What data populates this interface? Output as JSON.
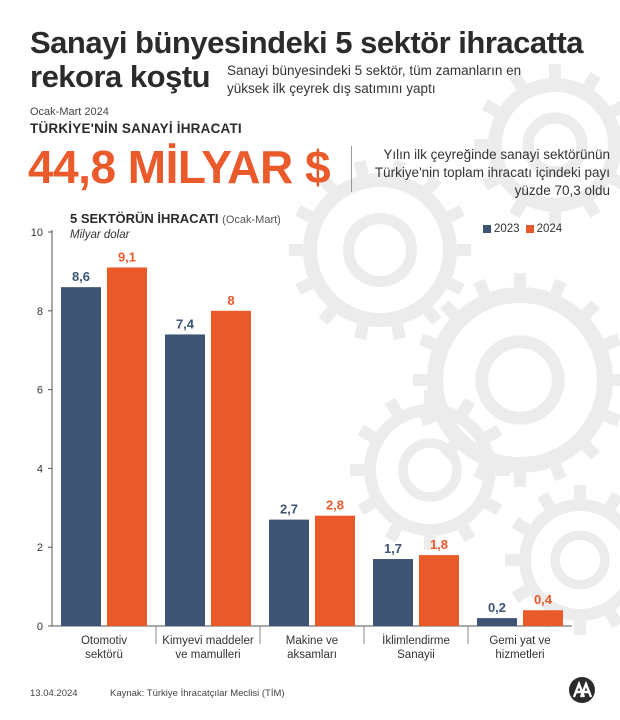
{
  "headline": "Sanayi bünyesindeki 5 sektör ihracatta rekora koştu",
  "headline_sub": "Sanayi bünyesindeki 5 sektör, tüm zamanların en yüksek ilk çeyrek dış satımını yaptı",
  "period": "Ocak-Mart 2024",
  "kicker": "TÜRKİYE'NİN SANAYİ İHRACATI",
  "big_number": "44,8 MİLYAR $",
  "side_note": "Yılın ilk çeyreğinde sanayi sektörünün Türkiye'nin toplam ihracatı içindeki payı yüzde 70,3 oldu",
  "chart_title": "5 SEKTÖRÜN İHRACATI",
  "chart_title_paren": "(Ocak-Mart)",
  "chart_unit": "Milyar dolar",
  "footer": {
    "date": "13.04.2024",
    "source": "Kaynak: Türkiye İhracatçılar Meclisi (TİM)"
  },
  "colors": {
    "series_2023": "#3d5475",
    "series_2024": "#ea5a2b",
    "accent": "#ea5a2b",
    "gear": "#ececec"
  },
  "chart_data": {
    "type": "bar",
    "categories": [
      "Otomotiv sektörü",
      "Kimyevi maddeler ve mamulleri",
      "Makine ve aksamları",
      "İklimlendirme Sanayii",
      "Gemi yat ve hizmetleri"
    ],
    "category_lines": [
      [
        "Otomotiv",
        "sektörü"
      ],
      [
        "Kimyevi maddeler",
        "ve mamulleri"
      ],
      [
        "Makine ve",
        "aksamları"
      ],
      [
        "İklimlendirme",
        "Sanayii"
      ],
      [
        "Gemi yat ve",
        "hizmetleri"
      ]
    ],
    "series": [
      {
        "name": "2023",
        "values": [
          8.6,
          7.4,
          2.7,
          1.7,
          0.2
        ],
        "labels": [
          "8,6",
          "7,4",
          "2,7",
          "1,7",
          "0,2"
        ],
        "color": "#3d5475"
      },
      {
        "name": "2024",
        "values": [
          9.1,
          8.0,
          2.8,
          1.8,
          0.4
        ],
        "labels": [
          "9,1",
          "8",
          "2,8",
          "1,8",
          "0,4"
        ],
        "color": "#ea5a2b"
      }
    ],
    "ylim": [
      0,
      10
    ],
    "yticks": [
      0,
      2,
      4,
      6,
      8,
      10
    ],
    "title": "5 SEKTÖRÜN İHRACATI (Ocak-Mart)",
    "ylabel": "Milyar dolar",
    "grid": false,
    "legend_position": "top-right"
  }
}
